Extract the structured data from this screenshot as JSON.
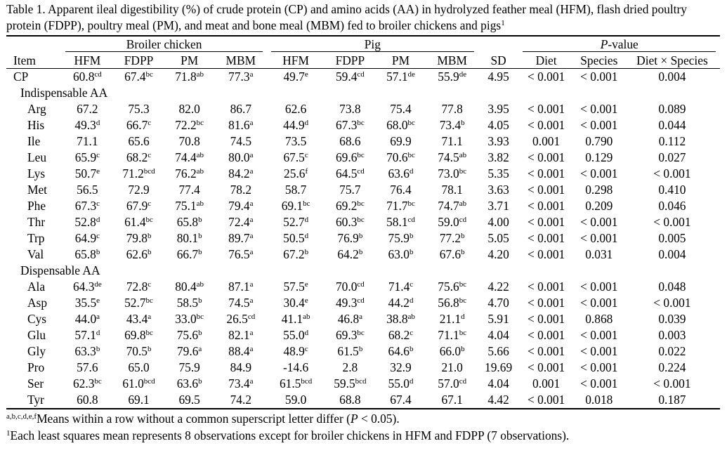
{
  "caption": {
    "text": "Table 1. Apparent ileal digestibility (%) of crude protein (CP) and amino acids (AA) in hydrolyzed feather meal (HFM), flash dried poultry protein (FDPP), poultry meal (PM), and meat and bone meal (MBM) fed to broiler chickens and pigs",
    "sup": "1"
  },
  "groups": {
    "broiler": "Broiler chicken",
    "pig": "Pig",
    "p_value_italic": "P",
    "p_value_rest": "-value"
  },
  "columns": {
    "item": "Item",
    "broiler": [
      "HFM",
      "FDPP",
      "PM",
      "MBM"
    ],
    "pig": [
      "HFM",
      "FDPP",
      "PM",
      "MBM"
    ],
    "sd": "SD",
    "p": [
      "Diet",
      "Species",
      "Diet × Species"
    ]
  },
  "cp": {
    "label": "CP",
    "cells": [
      [
        "60.8",
        "cd"
      ],
      [
        "67.4",
        "bc"
      ],
      [
        "71.8",
        "ab"
      ],
      [
        "77.3",
        "a"
      ],
      [
        "49.7",
        "e"
      ],
      [
        "59.4",
        "cd"
      ],
      [
        "57.1",
        "de"
      ],
      [
        "55.9",
        "de"
      ],
      [
        "4.95",
        ""
      ],
      [
        "< 0.001",
        ""
      ],
      [
        "< 0.001",
        ""
      ],
      [
        "0.004",
        ""
      ]
    ]
  },
  "sections": [
    {
      "title": "Indispensable AA",
      "rows": [
        {
          "label": "Arg",
          "cells": [
            [
              "67.2",
              ""
            ],
            [
              "75.3",
              ""
            ],
            [
              "82.0",
              ""
            ],
            [
              "86.7",
              ""
            ],
            [
              "62.6",
              ""
            ],
            [
              "73.8",
              ""
            ],
            [
              "75.4",
              ""
            ],
            [
              "77.8",
              ""
            ],
            [
              "3.95",
              ""
            ],
            [
              "< 0.001",
              ""
            ],
            [
              "< 0.001",
              ""
            ],
            [
              "0.089",
              ""
            ]
          ]
        },
        {
          "label": "His",
          "cells": [
            [
              "49.3",
              "d"
            ],
            [
              "66.7",
              "c"
            ],
            [
              "72.2",
              "bc"
            ],
            [
              "81.6",
              "a"
            ],
            [
              "44.9",
              "d"
            ],
            [
              "67.3",
              "bc"
            ],
            [
              "68.0",
              "bc"
            ],
            [
              "73.4",
              "b"
            ],
            [
              "4.05",
              ""
            ],
            [
              "< 0.001",
              ""
            ],
            [
              "< 0.001",
              ""
            ],
            [
              "0.044",
              ""
            ]
          ]
        },
        {
          "label": "Ile",
          "cells": [
            [
              "71.1",
              ""
            ],
            [
              "65.6",
              ""
            ],
            [
              "70.8",
              ""
            ],
            [
              "74.5",
              ""
            ],
            [
              "73.5",
              ""
            ],
            [
              "68.6",
              ""
            ],
            [
              "69.9",
              ""
            ],
            [
              "71.1",
              ""
            ],
            [
              "3.93",
              ""
            ],
            [
              "0.001",
              ""
            ],
            [
              "0.790",
              ""
            ],
            [
              "0.112",
              ""
            ]
          ]
        },
        {
          "label": "Leu",
          "cells": [
            [
              "65.9",
              "c"
            ],
            [
              "68.2",
              "c"
            ],
            [
              "74.4",
              "ab"
            ],
            [
              "80.0",
              "a"
            ],
            [
              "67.5",
              "c"
            ],
            [
              "69.6",
              "bc"
            ],
            [
              "70.6",
              "bc"
            ],
            [
              "74.5",
              "ab"
            ],
            [
              "3.82",
              ""
            ],
            [
              "< 0.001",
              ""
            ],
            [
              "0.129",
              ""
            ],
            [
              "0.027",
              ""
            ]
          ]
        },
        {
          "label": "Lys",
          "cells": [
            [
              "50.7",
              "e"
            ],
            [
              "71.2",
              "bcd"
            ],
            [
              "76.2",
              "ab"
            ],
            [
              "84.2",
              "a"
            ],
            [
              "25.6",
              "f"
            ],
            [
              "64.5",
              "cd"
            ],
            [
              "63.6",
              "d"
            ],
            [
              "73.0",
              "bc"
            ],
            [
              "5.35",
              ""
            ],
            [
              "< 0.001",
              ""
            ],
            [
              "< 0.001",
              ""
            ],
            [
              "< 0.001",
              ""
            ]
          ]
        },
        {
          "label": "Met",
          "cells": [
            [
              "56.5",
              ""
            ],
            [
              "72.9",
              ""
            ],
            [
              "77.4",
              ""
            ],
            [
              "78.2",
              ""
            ],
            [
              "58.7",
              ""
            ],
            [
              "75.7",
              ""
            ],
            [
              "76.4",
              ""
            ],
            [
              "78.1",
              ""
            ],
            [
              "3.63",
              ""
            ],
            [
              "< 0.001",
              ""
            ],
            [
              "0.298",
              ""
            ],
            [
              "0.410",
              ""
            ]
          ]
        },
        {
          "label": "Phe",
          "cells": [
            [
              "67.3",
              "c"
            ],
            [
              "67.9",
              "c"
            ],
            [
              "75.1",
              "ab"
            ],
            [
              "79.4",
              "a"
            ],
            [
              "69.1",
              "bc"
            ],
            [
              "69.2",
              "bc"
            ],
            [
              "71.7",
              "bc"
            ],
            [
              "74.7",
              "ab"
            ],
            [
              "3.71",
              ""
            ],
            [
              "< 0.001",
              ""
            ],
            [
              "0.209",
              ""
            ],
            [
              "0.046",
              ""
            ]
          ]
        },
        {
          "label": "Thr",
          "cells": [
            [
              "52.8",
              "d"
            ],
            [
              "61.4",
              "bc"
            ],
            [
              "65.8",
              "b"
            ],
            [
              "72.4",
              "a"
            ],
            [
              "52.7",
              "d"
            ],
            [
              "60.3",
              "bc"
            ],
            [
              "58.1",
              "cd"
            ],
            [
              "59.0",
              "cd"
            ],
            [
              "4.00",
              ""
            ],
            [
              "< 0.001",
              ""
            ],
            [
              "< 0.001",
              ""
            ],
            [
              "< 0.001",
              ""
            ]
          ]
        },
        {
          "label": "Trp",
          "cells": [
            [
              "64.9",
              "c"
            ],
            [
              "79.8",
              "b"
            ],
            [
              "80.1",
              "b"
            ],
            [
              "89.7",
              "a"
            ],
            [
              "50.5",
              "d"
            ],
            [
              "76.9",
              "b"
            ],
            [
              "75.9",
              "b"
            ],
            [
              "77.2",
              "b"
            ],
            [
              "5.05",
              ""
            ],
            [
              "< 0.001",
              ""
            ],
            [
              "< 0.001",
              ""
            ],
            [
              "0.005",
              ""
            ]
          ]
        },
        {
          "label": "Val",
          "cells": [
            [
              "65.8",
              "b"
            ],
            [
              "62.6",
              "b"
            ],
            [
              "66.7",
              "b"
            ],
            [
              "76.5",
              "a"
            ],
            [
              "67.2",
              "b"
            ],
            [
              "64.2",
              "b"
            ],
            [
              "63.0",
              "b"
            ],
            [
              "67.6",
              "b"
            ],
            [
              "4.20",
              ""
            ],
            [
              "< 0.001",
              ""
            ],
            [
              "0.031",
              ""
            ],
            [
              "0.004",
              ""
            ]
          ]
        }
      ]
    },
    {
      "title": "Dispensable AA",
      "rows": [
        {
          "label": "Ala",
          "cells": [
            [
              "64.3",
              "de"
            ],
            [
              "72.8",
              "c"
            ],
            [
              "80.4",
              "ab"
            ],
            [
              "87.1",
              "a"
            ],
            [
              "57.5",
              "e"
            ],
            [
              "70.0",
              "cd"
            ],
            [
              "71.4",
              "c"
            ],
            [
              "75.6",
              "bc"
            ],
            [
              "4.22",
              ""
            ],
            [
              "< 0.001",
              ""
            ],
            [
              "< 0.001",
              ""
            ],
            [
              "0.048",
              ""
            ]
          ]
        },
        {
          "label": "Asp",
          "cells": [
            [
              "35.5",
              "e"
            ],
            [
              "52.7",
              "bc"
            ],
            [
              "58.5",
              "b"
            ],
            [
              "74.5",
              "a"
            ],
            [
              "30.4",
              "e"
            ],
            [
              "49.3",
              "cd"
            ],
            [
              "44.2",
              "d"
            ],
            [
              "56.8",
              "bc"
            ],
            [
              "4.70",
              ""
            ],
            [
              "< 0.001",
              ""
            ],
            [
              "< 0.001",
              ""
            ],
            [
              "< 0.001",
              ""
            ]
          ]
        },
        {
          "label": "Cys",
          "cells": [
            [
              "44.0",
              "a"
            ],
            [
              "43.4",
              "a"
            ],
            [
              "33.0",
              "bc"
            ],
            [
              "26.5",
              "cd"
            ],
            [
              "41.1",
              "ab"
            ],
            [
              "46.8",
              "a"
            ],
            [
              "38.8",
              "ab"
            ],
            [
              "21.1",
              "d"
            ],
            [
              "5.91",
              ""
            ],
            [
              "< 0.001",
              ""
            ],
            [
              "0.868",
              ""
            ],
            [
              "0.039",
              ""
            ]
          ]
        },
        {
          "label": "Glu",
          "cells": [
            [
              "57.1",
              "d"
            ],
            [
              "69.8",
              "bc"
            ],
            [
              "75.6",
              "b"
            ],
            [
              "82.1",
              "a"
            ],
            [
              "55.0",
              "d"
            ],
            [
              "69.3",
              "bc"
            ],
            [
              "68.2",
              "c"
            ],
            [
              "71.1",
              "bc"
            ],
            [
              "4.04",
              ""
            ],
            [
              "< 0.001",
              ""
            ],
            [
              "< 0.001",
              ""
            ],
            [
              "0.003",
              ""
            ]
          ]
        },
        {
          "label": "Gly",
          "cells": [
            [
              "63.3",
              "b"
            ],
            [
              "70.5",
              "b"
            ],
            [
              "79.6",
              "a"
            ],
            [
              "88.4",
              "a"
            ],
            [
              "48.9",
              "c"
            ],
            [
              "61.5",
              "b"
            ],
            [
              "64.6",
              "b"
            ],
            [
              "66.0",
              "b"
            ],
            [
              "5.66",
              ""
            ],
            [
              "< 0.001",
              ""
            ],
            [
              "< 0.001",
              ""
            ],
            [
              "0.022",
              ""
            ]
          ]
        },
        {
          "label": "Pro",
          "cells": [
            [
              "57.6",
              ""
            ],
            [
              "65.0",
              ""
            ],
            [
              "75.9",
              ""
            ],
            [
              "84.9",
              ""
            ],
            [
              "-14.6",
              ""
            ],
            [
              "2.8",
              ""
            ],
            [
              "32.9",
              ""
            ],
            [
              "21.0",
              ""
            ],
            [
              "19.69",
              ""
            ],
            [
              "< 0.001",
              ""
            ],
            [
              "< 0.001",
              ""
            ],
            [
              "0.224",
              ""
            ]
          ]
        },
        {
          "label": "Ser",
          "cells": [
            [
              "62.3",
              "bc"
            ],
            [
              "61.0",
              "bcd"
            ],
            [
              "63.6",
              "b"
            ],
            [
              "73.4",
              "a"
            ],
            [
              "61.5",
              "bcd"
            ],
            [
              "59.5",
              "bcd"
            ],
            [
              "55.0",
              "d"
            ],
            [
              "57.0",
              "cd"
            ],
            [
              "4.04",
              ""
            ],
            [
              "0.001",
              ""
            ],
            [
              "< 0.001",
              ""
            ],
            [
              "< 0.001",
              ""
            ]
          ]
        },
        {
          "label": "Tyr",
          "cells": [
            [
              "60.8",
              ""
            ],
            [
              "69.1",
              ""
            ],
            [
              "69.5",
              ""
            ],
            [
              "74.2",
              ""
            ],
            [
              "59.0",
              ""
            ],
            [
              "68.8",
              ""
            ],
            [
              "67.4",
              ""
            ],
            [
              "67.1",
              ""
            ],
            [
              "4.42",
              ""
            ],
            [
              "< 0.001",
              ""
            ],
            [
              "0.018",
              ""
            ],
            [
              "0.187",
              ""
            ]
          ]
        }
      ]
    }
  ],
  "footnotes": {
    "f1_sup": "a,b,c,d,e,f",
    "f1_text": "Means within a row without a common superscript letter differ (",
    "f1_p": "P",
    "f1_end": " < 0.05).",
    "f2_sup": "1",
    "f2_text": "Each least squares mean represents 8 observations except for broiler chickens in HFM and FDPP (7 observations)."
  }
}
